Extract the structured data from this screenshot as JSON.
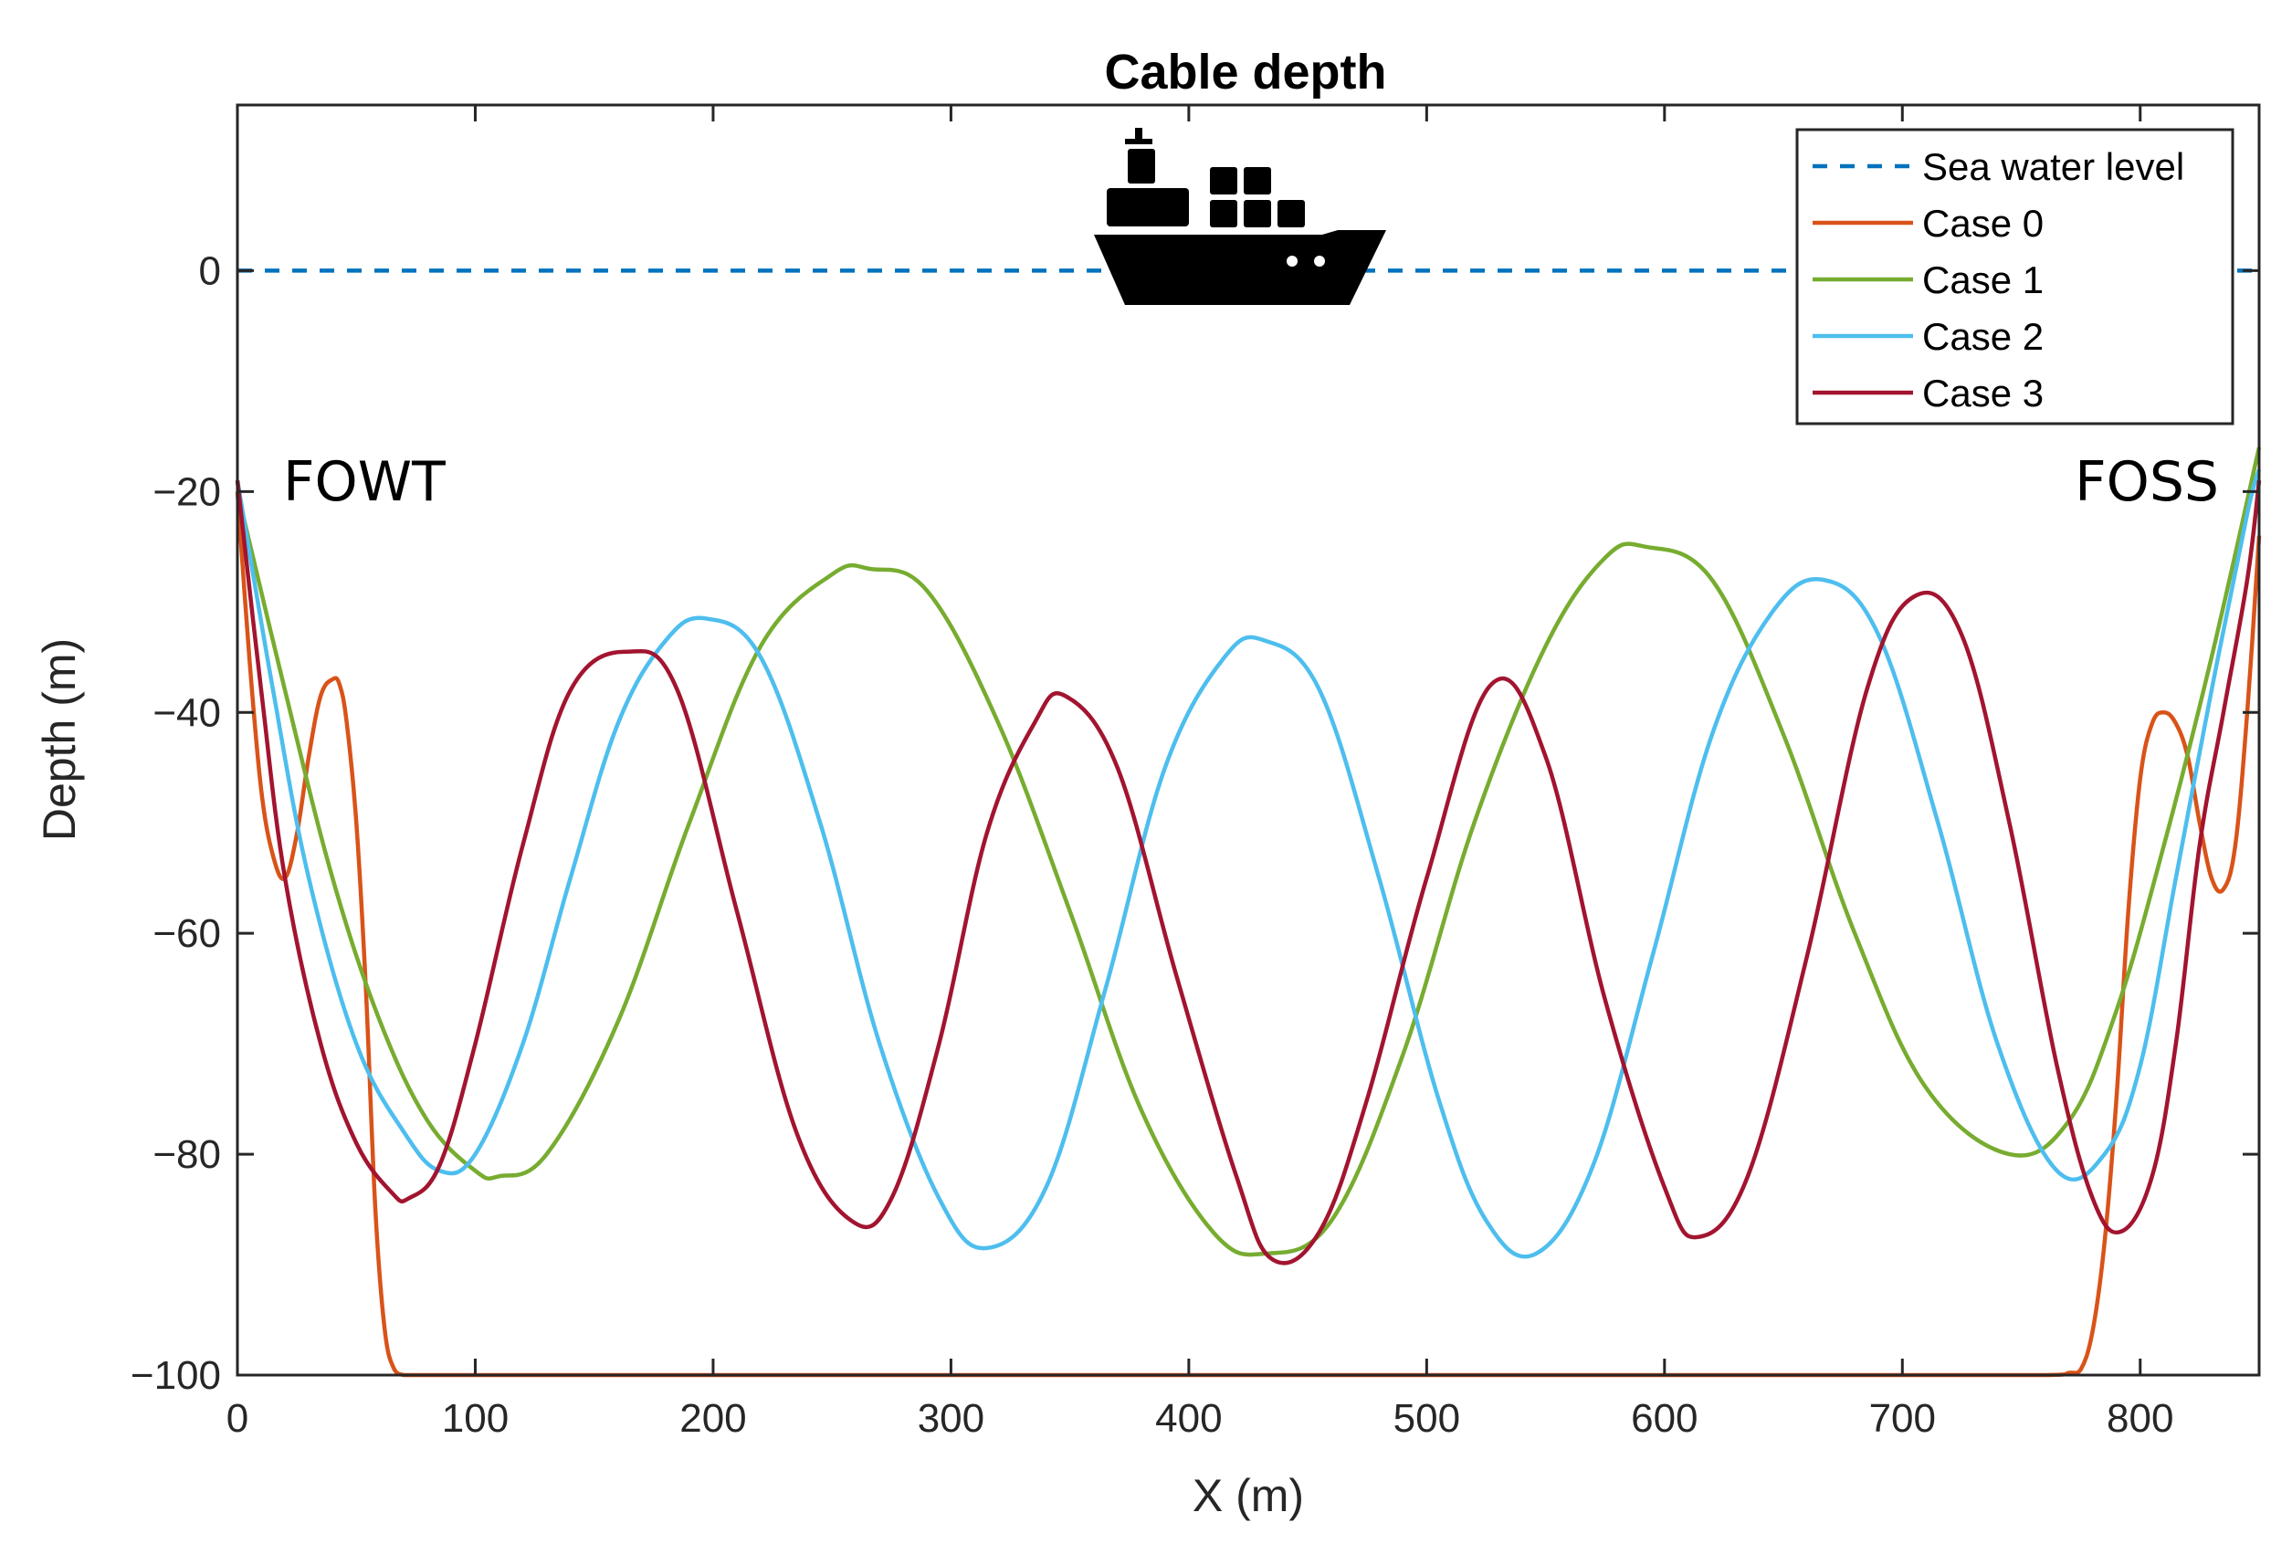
{
  "chart_data": {
    "type": "line",
    "title": "Cable depth",
    "xlabel": "X (m)",
    "ylabel": "Depth (m)",
    "xlim": [
      0,
      850
    ],
    "ylim": [
      -100,
      15
    ],
    "xticks": [
      0,
      100,
      200,
      300,
      400,
      500,
      600,
      700,
      800
    ],
    "xtick_labels": [
      "0",
      "100",
      "200",
      "300",
      "400",
      "500",
      "600",
      "700",
      "800"
    ],
    "yticks": [
      0,
      -20,
      -40,
      -60,
      -80,
      -100
    ],
    "ytick_labels": [
      "0",
      "−20",
      "−40",
      "−60",
      "−80",
      "−100"
    ],
    "annotations": [
      {
        "text": "FOWT",
        "position": "left"
      },
      {
        "text": "FOSS",
        "position": "right"
      }
    ],
    "legend": {
      "placement": "top-right"
    },
    "icon": "ship-icon",
    "series": [
      {
        "name": "Sea water level",
        "color": "#0072BD",
        "style": "dashed",
        "x": [
          0,
          850
        ],
        "y": [
          0,
          0
        ]
      },
      {
        "name": "Case 0",
        "color": "#D95319",
        "style": "solid",
        "x": [
          0,
          5,
          10,
          15,
          20,
          25,
          30,
          35,
          40,
          43,
          46,
          50,
          54,
          58,
          62,
          66,
          70,
          75,
          80,
          100,
          150,
          200,
          300,
          400,
          500,
          600,
          700,
          760,
          770,
          775,
          780,
          785,
          790,
          795,
          800,
          805,
          810,
          815,
          820,
          825,
          830,
          835,
          840,
          845,
          850
        ],
        "y": [
          -20,
          -35,
          -47,
          -53,
          -55,
          -51,
          -44,
          -38.5,
          -37,
          -37.5,
          -41,
          -50,
          -65,
          -85,
          -96,
          -99.5,
          -100,
          -100,
          -100,
          -100,
          -100,
          -100,
          -100,
          -100,
          -100,
          -100,
          -100,
          -100,
          -99.8,
          -99.5,
          -96,
          -88,
          -75,
          -58,
          -46,
          -41,
          -40,
          -41,
          -44,
          -50,
          -55,
          -56,
          -52,
          -40,
          -24
        ]
      },
      {
        "name": "Case 1",
        "color": "#77AC30",
        "style": "solid",
        "x": [
          0,
          20,
          40,
          60,
          80,
          100,
          110,
          130,
          160,
          190,
          220,
          250,
          266,
          290,
          320,
          350,
          380,
          410,
          432,
          460,
          490,
          520,
          550,
          575,
          592,
          620,
          650,
          680,
          710,
          745,
          770,
          790,
          810,
          830,
          850
        ],
        "y": [
          -20,
          -38,
          -55,
          -68,
          -77,
          -81.5,
          -82,
          -80,
          -68,
          -50,
          -34,
          -27.5,
          -27,
          -29,
          -41,
          -58,
          -76,
          -87,
          -89,
          -86,
          -71,
          -50,
          -34,
          -26,
          -25,
          -28,
          -42,
          -60,
          -74,
          -80,
          -77,
          -67,
          -52,
          -35,
          -16
        ]
      },
      {
        "name": "Case 2",
        "color": "#4DBEEE",
        "style": "solid",
        "x": [
          0,
          15,
          30,
          50,
          70,
          85,
          100,
          120,
          140,
          160,
          180,
          197,
          220,
          245,
          270,
          295,
          315,
          340,
          365,
          390,
          415,
          432,
          455,
          480,
          505,
          525,
          546,
          570,
          595,
          620,
          645,
          667,
          690,
          715,
          740,
          765,
          785,
          800,
          815,
          830,
          845,
          850
        ],
        "y": [
          -19,
          -38,
          -55,
          -70,
          -78,
          -81.5,
          -80,
          -70,
          -55,
          -41,
          -33.5,
          -31.5,
          -35,
          -50,
          -70,
          -84,
          -88.5,
          -83,
          -65,
          -45,
          -35,
          -33.5,
          -38,
          -55,
          -75,
          -86,
          -89,
          -81,
          -62,
          -42,
          -31,
          -28,
          -33,
          -50,
          -70,
          -81.5,
          -80,
          -72,
          -55,
          -38,
          -22,
          -18
        ]
      },
      {
        "name": "Case 3",
        "color": "#A2142F",
        "style": "solid",
        "x": [
          0,
          10,
          20,
          35,
          50,
          65,
          72,
          85,
          100,
          120,
          140,
          164,
          185,
          210,
          235,
          258,
          275,
          295,
          315,
          335,
          348,
          370,
          395,
          420,
          435,
          455,
          475,
          500,
          527,
          550,
          575,
          600,
          614,
          635,
          660,
          685,
          705,
          725,
          745,
          765,
          780,
          792,
          805,
          815,
          825,
          835,
          845,
          850
        ],
        "y": [
          -19,
          -38,
          -55,
          -70,
          -79,
          -83.5,
          -84,
          -81,
          -70,
          -52,
          -38,
          -34.5,
          -38,
          -58,
          -78,
          -86,
          -84,
          -70,
          -51,
          -41,
          -38.5,
          -45,
          -64,
          -82,
          -89.5,
          -87,
          -75,
          -55,
          -37.5,
          -44,
          -66,
          -83,
          -87.5,
          -82,
          -62,
          -38,
          -29.5,
          -33,
          -50,
          -72,
          -84,
          -87,
          -82,
          -70,
          -52,
          -40,
          -28,
          -19
        ]
      }
    ]
  }
}
